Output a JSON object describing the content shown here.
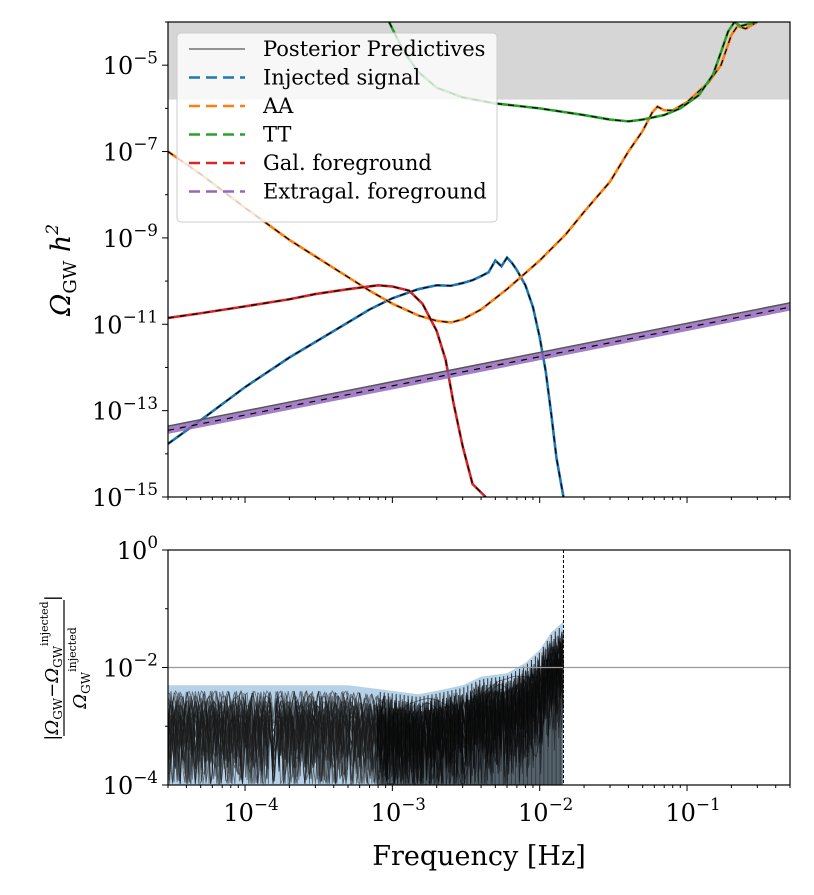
{
  "chart_data": [
    {
      "type": "line",
      "panel": "top",
      "ylabel": "Ω_GW h²",
      "xscale": "log",
      "yscale": "log",
      "xlim": [
        3e-05,
        0.5
      ],
      "ylim": [
        1e-15,
        0.0001
      ],
      "yticks": [
        {
          "value": 1e-15,
          "base": "10",
          "exp": "−15"
        },
        {
          "value": 1e-13,
          "base": "10",
          "exp": "−13"
        },
        {
          "value": 1e-11,
          "base": "10",
          "exp": "−11"
        },
        {
          "value": 1e-09,
          "base": "10",
          "exp": "−9"
        },
        {
          "value": 1e-07,
          "base": "10",
          "exp": "−7"
        },
        {
          "value": 1e-05,
          "base": "10",
          "exp": "−5"
        }
      ],
      "shaded_region": {
        "y_from": 1.6e-06,
        "y_to": 0.0001,
        "color": "#d6d6d6"
      },
      "legend": {
        "location": "upper-left",
        "entries": [
          {
            "label": "Posterior Predictives",
            "color": "#555555",
            "style": "solid"
          },
          {
            "label": "Injected signal",
            "color": "#1f77b4",
            "style": "dashed"
          },
          {
            "label": "AA",
            "color": "#ff7f0e",
            "style": "dashed"
          },
          {
            "label": "TT",
            "color": "#2ca02c",
            "style": "dashed"
          },
          {
            "label": "Gal. foreground",
            "color": "#d62728",
            "style": "dashed"
          },
          {
            "label": "Extragal. foreground",
            "color": "#9467bd",
            "style": "dashed"
          }
        ]
      },
      "series": [
        {
          "name": "Injected signal",
          "color": "#1f77b4",
          "points": [
            [
              3e-05,
              1.7e-14
            ],
            [
              5e-05,
              6e-14
            ],
            [
              0.0001,
              3.5e-13
            ],
            [
              0.0002,
              1.7e-12
            ],
            [
              0.0004,
              7e-12
            ],
            [
              0.0007,
              2.2e-11
            ],
            [
              0.001,
              4e-11
            ],
            [
              0.0015,
              6.5e-11
            ],
            [
              0.002,
              8e-11
            ],
            [
              0.0025,
              7.8e-11
            ],
            [
              0.003,
              9e-11
            ],
            [
              0.0035,
              1.05e-10
            ],
            [
              0.004,
              1.3e-10
            ],
            [
              0.0045,
              1.6e-10
            ],
            [
              0.005,
              3e-10
            ],
            [
              0.0055,
              2.2e-10
            ],
            [
              0.006,
              3.5e-10
            ],
            [
              0.0065,
              2.6e-10
            ],
            [
              0.007,
              1.8e-10
            ],
            [
              0.008,
              8e-11
            ],
            [
              0.009,
              2.5e-11
            ],
            [
              0.01,
              5e-12
            ],
            [
              0.011,
              8e-13
            ],
            [
              0.012,
              8e-14
            ],
            [
              0.013,
              8e-15
            ],
            [
              0.0145,
              1e-15
            ]
          ]
        },
        {
          "name": "AA",
          "color": "#ff7f0e",
          "points": [
            [
              3e-05,
              1e-07
            ],
            [
              5e-05,
              3e-08
            ],
            [
              0.0001,
              5e-09
            ],
            [
              0.0002,
              9e-10
            ],
            [
              0.0004,
              2e-10
            ],
            [
              0.0007,
              6e-11
            ],
            [
              0.001,
              3e-11
            ],
            [
              0.0015,
              1.6e-11
            ],
            [
              0.002,
              1.2e-11
            ],
            [
              0.0025,
              1.1e-11
            ],
            [
              0.003,
              1.3e-11
            ],
            [
              0.004,
              2.2e-11
            ],
            [
              0.006,
              6.5e-11
            ],
            [
              0.01,
              3e-10
            ],
            [
              0.015,
              1.2e-09
            ],
            [
              0.02,
              4e-09
            ],
            [
              0.03,
              2e-08
            ],
            [
              0.04,
              1e-07
            ],
            [
              0.05,
              3e-07
            ],
            [
              0.058,
              8e-07
            ],
            [
              0.063,
              1.1e-06
            ],
            [
              0.07,
              9e-07
            ],
            [
              0.08,
              9e-07
            ],
            [
              0.1,
              1.4e-06
            ],
            [
              0.14,
              4e-06
            ],
            [
              0.17,
              1e-05
            ],
            [
              0.2,
              5e-05
            ],
            [
              0.22,
              8e-05
            ],
            [
              0.25,
              7e-05
            ],
            [
              0.3,
              0.0001
            ]
          ]
        },
        {
          "name": "TT",
          "color": "#2ca02c",
          "points": [
            [
              0.00095,
              0.0001
            ],
            [
              0.0012,
              2e-05
            ],
            [
              0.0015,
              7e-06
            ],
            [
              0.002,
              3e-06
            ],
            [
              0.003,
              1.8e-06
            ],
            [
              0.005,
              1.3e-06
            ],
            [
              0.01,
              1e-06
            ],
            [
              0.02,
              7e-07
            ],
            [
              0.03,
              5.5e-07
            ],
            [
              0.04,
              5e-07
            ],
            [
              0.05,
              5.5e-07
            ],
            [
              0.07,
              7e-07
            ],
            [
              0.09,
              1e-06
            ],
            [
              0.12,
              2e-06
            ],
            [
              0.15,
              6e-06
            ],
            [
              0.17,
              2e-05
            ],
            [
              0.19,
              6e-05
            ],
            [
              0.21,
              0.0001
            ],
            [
              0.23,
              8e-05
            ],
            [
              0.26,
              9e-05
            ],
            [
              0.3,
              0.0001
            ]
          ]
        },
        {
          "name": "Gal. foreground",
          "color": "#d62728",
          "points": [
            [
              3e-05,
              1.4e-11
            ],
            [
              5e-05,
              1.8e-11
            ],
            [
              0.0001,
              2.6e-11
            ],
            [
              0.0002,
              3.8e-11
            ],
            [
              0.0003,
              5e-11
            ],
            [
              0.0005,
              6.5e-11
            ],
            [
              0.0008,
              8e-11
            ],
            [
              0.001,
              7.5e-11
            ],
            [
              0.0013,
              6e-11
            ],
            [
              0.0016,
              3e-11
            ],
            [
              0.002,
              7e-12
            ],
            [
              0.0023,
              1.5e-12
            ],
            [
              0.0026,
              1.5e-13
            ],
            [
              0.003,
              1.5e-14
            ],
            [
              0.0035,
              2e-15
            ],
            [
              0.0043,
              1e-15
            ]
          ]
        },
        {
          "name": "Extragal. foreground",
          "color": "#9467bd",
          "points": [
            [
              3e-05,
              3.5e-14
            ],
            [
              0.5,
              2.5e-11
            ]
          ]
        }
      ]
    },
    {
      "type": "line",
      "panel": "bottom",
      "ylabel": "|Ω_GW − Ω_GW^injected| / Ω_GW^injected",
      "xlabel": "Frequency [Hz]",
      "xscale": "log",
      "yscale": "log",
      "xlim": [
        3e-05,
        0.5
      ],
      "ylim": [
        0.0001,
        1
      ],
      "yticks": [
        {
          "value": 0.0001,
          "base": "10",
          "exp": "−4"
        },
        {
          "value": 0.01,
          "base": "10",
          "exp": "−2"
        },
        {
          "value": 1,
          "base": "10",
          "exp": "0"
        }
      ],
      "xticks": [
        {
          "value": 0.0001,
          "base": "10",
          "exp": "−4"
        },
        {
          "value": 0.001,
          "base": "10",
          "exp": "−3"
        },
        {
          "value": 0.01,
          "base": "10",
          "exp": "−2"
        },
        {
          "value": 0.1,
          "base": "10",
          "exp": "−1"
        }
      ],
      "hline": 0.01,
      "vline": 0.0145,
      "envelope": {
        "name": "relative error band",
        "points": [
          [
            3e-05,
            0.005
          ],
          [
            0.0005,
            0.005
          ],
          [
            0.001,
            0.004
          ],
          [
            0.0015,
            0.0035
          ],
          [
            0.002,
            0.004
          ],
          [
            0.003,
            0.005
          ],
          [
            0.004,
            0.007
          ],
          [
            0.006,
            0.008
          ],
          [
            0.008,
            0.012
          ],
          [
            0.01,
            0.02
          ],
          [
            0.012,
            0.04
          ],
          [
            0.0145,
            0.06
          ]
        ]
      }
    }
  ],
  "labels": {
    "top_ylabel": "Ω",
    "top_ylabel_sub": "GW",
    "top_ylabel_h": "h",
    "top_ylabel_exp": "2",
    "bottom_ylabel_num_main": "|Ω",
    "bottom_ylabel_num_sub": "GW",
    "bottom_ylabel_minus": "−Ω",
    "bottom_ylabel_sup": "injected",
    "bottom_ylabel_den_main": "Ω",
    "bottom_ylabel_close": "|",
    "xlabel": "Frequency [Hz]"
  }
}
